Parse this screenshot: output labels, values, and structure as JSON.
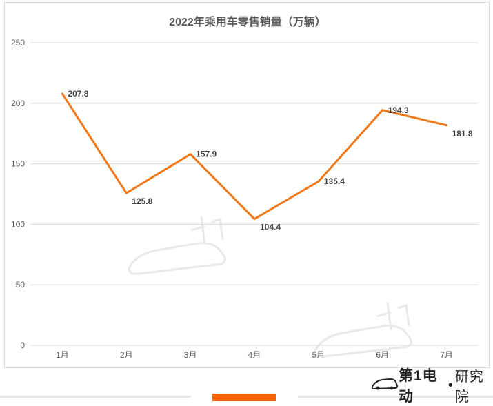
{
  "chart_data": {
    "type": "line",
    "title": "2022年乘用车零售销量（万辆）",
    "categories": [
      "1月",
      "2月",
      "3月",
      "4月",
      "5月",
      "6月",
      "7月"
    ],
    "series": [
      {
        "values": [
          207.8,
          125.8,
          157.9,
          104.4,
          135.4,
          194.3,
          181.8
        ]
      }
    ],
    "data_labels": [
      "207.8",
      "125.8",
      "157.9",
      "104.4",
      "135.4",
      "194.3",
      "181.8"
    ],
    "ylim": [
      0,
      250
    ],
    "yticks": [
      0,
      50,
      100,
      150,
      200,
      250
    ],
    "grid": true,
    "line_color": "#f07818"
  },
  "footer": {
    "brand": "第1电动",
    "separator": "•",
    "brand_sub": "研究院",
    "accent_color": "#f06a0a"
  }
}
